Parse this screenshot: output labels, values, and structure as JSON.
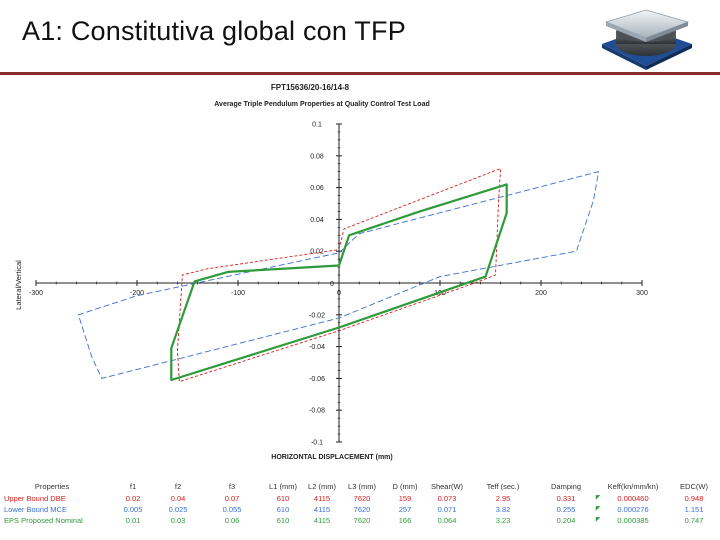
{
  "slide": {
    "title": "A1: Constitutiva global con TFP",
    "logo_icon": "bearing-isolator-icon"
  },
  "chart_data": {
    "type": "line",
    "title": "FPT15636/20-16/14-8",
    "subtitle": "Average Triple Pendulum Properties at Quality Control Test Load",
    "xlabel": "HORIZONTAL  DISPLACEMENT  (mm)",
    "ylabel": "Lateral/Vertical",
    "xlim": [
      -300,
      300
    ],
    "ylim": [
      -0.1,
      0.1
    ],
    "x_ticks": [
      "-300",
      "-200",
      "-100",
      "0",
      "100",
      "200",
      "300"
    ],
    "y_ticks": [
      "0.1",
      "0.08",
      "0.06",
      "0.04",
      "0.02",
      "0",
      "-0.02",
      "-0.04",
      "-0.06",
      "-0.08",
      "-0.1"
    ],
    "series": [
      {
        "name": "Upper Bound DBE",
        "color": "#d42020",
        "dash": "3,2",
        "x": [
          0,
          5,
          160,
          158,
          155,
          130,
          0,
          -158,
          -160,
          -155,
          -130,
          0
        ],
        "y": [
          0.021,
          0.034,
          0.072,
          0.052,
          0.005,
          -0.001,
          -0.03,
          -0.062,
          -0.043,
          0.005,
          0.009,
          0.021
        ]
      },
      {
        "name": "Lower Bound MCE",
        "color": "#3a6fd0",
        "dash": "6,3",
        "x": [
          0,
          20,
          257,
          252,
          235,
          100,
          0,
          -235,
          -245,
          -258,
          -200,
          0
        ],
        "y": [
          0.019,
          0.031,
          0.07,
          0.052,
          0.02,
          0.004,
          -0.022,
          -0.06,
          -0.046,
          -0.02,
          -0.008,
          0.019
        ]
      },
      {
        "name": "EPS Proposed Nominal",
        "color": "#2e9a3a",
        "dash": "",
        "x": [
          0,
          10,
          80,
          166,
          166,
          145,
          0,
          -166,
          -166,
          -143,
          -110,
          0
        ],
        "y": [
          0.011,
          0.03,
          0.045,
          0.062,
          0.044,
          0.004,
          -0.028,
          -0.061,
          -0.041,
          0.001,
          0.007,
          0.011
        ]
      }
    ]
  },
  "table": {
    "headers": [
      "Properties",
      "f1",
      "f2",
      "f3",
      "L1 (mm)",
      "L2 (mm)",
      "L3 (mm)",
      "D (mm)",
      "Shear(W)",
      "Teff (sec.)",
      "Damping",
      "Keff(kn/mm/kn)",
      "EDC(W)"
    ],
    "rows": [
      {
        "color": "#d42020",
        "cells": [
          "Upper Bound DBE",
          "0.02",
          "0.04",
          "0.07",
          "610",
          "4115",
          "7620",
          "159",
          "0.073",
          "2.95",
          "0.331",
          "0.000460",
          "0.948"
        ]
      },
      {
        "color": "#3a6fd0",
        "cells": [
          "Lower Bound MCE",
          "0.005",
          "0.025",
          "0.055",
          "610",
          "4115",
          "7620",
          "257",
          "0.071",
          "3.82",
          "0.255",
          "0.000276",
          "1.151"
        ]
      },
      {
        "color": "#2e9a3a",
        "cells": [
          "EPS Proposed Nominal",
          "0.01",
          "0.03",
          "0.06",
          "610",
          "4115",
          "7620",
          "166",
          "0.064",
          "3.23",
          "0.204",
          "0.000385",
          "0.747"
        ]
      }
    ]
  }
}
